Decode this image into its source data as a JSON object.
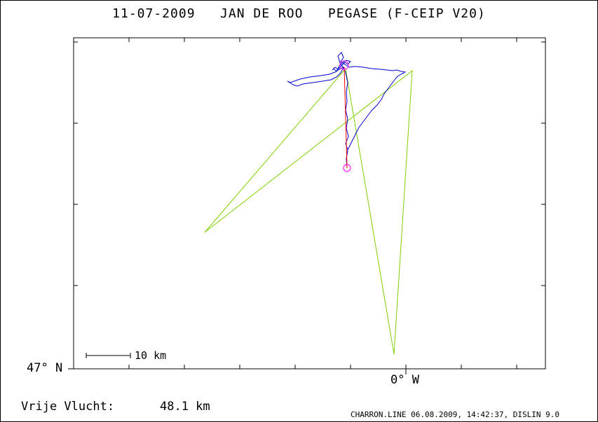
{
  "header": {
    "title": "11-07-2009   JAN DE ROO   PEGASE (F-CEIP V20)"
  },
  "map": {
    "lat_label": "47° N",
    "lon_label": "0° W",
    "scale_label": "10 km",
    "colors": {
      "flight_track": "#0000cc",
      "task_line": "#7fd000",
      "declared_segment": "#ff0000",
      "turnpoint_marker": "#ff00ff",
      "frame": "#000000"
    }
  },
  "footer": {
    "free_flight_label": "Vrije Vlucht:",
    "free_flight_value": "48.1 km",
    "program_info": "CHARRON.LINE 06.08.2009, 14:42:37, DISLIN 9.0"
  }
}
